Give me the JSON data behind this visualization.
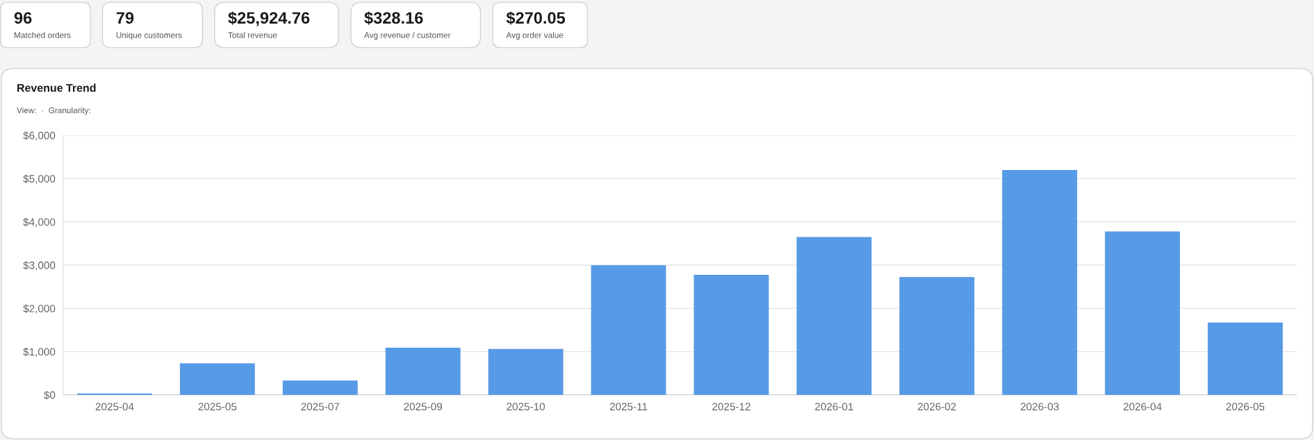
{
  "chart_data": [
    {
      "type": "other",
      "title": "96",
      "subtitle": "Matched orders"
    },
    {
      "type": "other",
      "title": "79",
      "subtitle": "Unique customers"
    },
    {
      "type": "other",
      "title": "$25,924.76",
      "subtitle": "Total revenue"
    },
    {
      "type": "other",
      "title": "$328.16",
      "subtitle": "Avg revenue / customer"
    },
    {
      "type": "other",
      "title": "$270.05",
      "subtitle": "Avg order value"
    },
    {
      "type": "bar",
      "title": "Revenue Trend",
      "subtitle": "View:  ·  Granularity:",
      "categories": [
        "2025-04",
        "2025-05",
        "2025-07",
        "2025-09",
        "2025-10",
        "2025-11",
        "2025-12",
        "2026-01",
        "2026-02",
        "2026-03",
        "2026-04",
        "2026-05"
      ],
      "values": [
        20,
        720,
        321,
        1080,
        1050,
        2986,
        2763,
        3638,
        2714,
        5185,
        3765,
        1663
      ],
      "color": "#4f95e5",
      "ylim": [
        0,
        6000
      ],
      "yticks": [
        {
          "value": 0,
          "label": "$0"
        },
        {
          "value": 1000,
          "label": "$1,000"
        },
        {
          "value": 2000,
          "label": "$2,000"
        },
        {
          "value": 3000,
          "label": "$3,000"
        },
        {
          "value": 4000,
          "label": "$4,000"
        },
        {
          "value": 5000,
          "label": "$5,000"
        },
        {
          "value": 6000,
          "label": "$6,000"
        }
      ],
      "grid": "y",
      "legend": false
    }
  ]
}
